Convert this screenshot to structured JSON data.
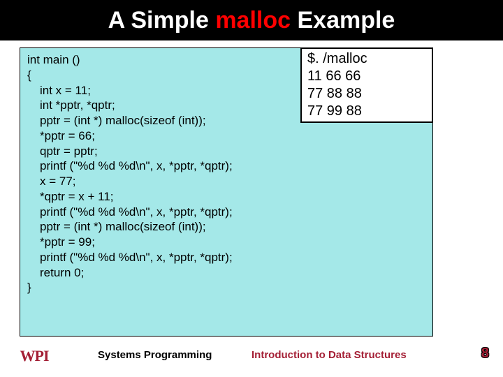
{
  "title": {
    "prefix": "A Simple ",
    "highlight": "malloc",
    "suffix": " Example"
  },
  "code": {
    "lines": [
      "int main ()",
      "{",
      "  int x = 11;",
      "  int *pptr, *qptr;",
      "",
      "  pptr = (int *) malloc(sizeof (int));",
      "  *pptr = 66;",
      "  qptr = pptr;",
      "  printf (\"%d %d %d\\n\", x, *pptr, *qptr);",
      "  x = 77;",
      "  *qptr = x + 11;",
      "  printf (\"%d %d %d\\n\", x, *pptr, *qptr);",
      "  pptr = (int *) malloc(sizeof (int));",
      "  *pptr = 99;",
      "  printf (\"%d %d %d\\n\", x, *pptr, *qptr);",
      "  return 0;",
      "}"
    ]
  },
  "output": {
    "lines": [
      "$. /malloc",
      "11 66 66",
      "77 88 88",
      "77 99 88"
    ]
  },
  "footer": {
    "logo": "WPI",
    "left": "Systems Programming",
    "center": "Introduction to Data Structures",
    "page": "8"
  },
  "colors": {
    "title_bg": "#000000",
    "title_text": "#ffffff",
    "highlight": "#ff0000",
    "code_bg": "#a4e8e8",
    "output_bg": "#ffffff",
    "wpi_red": "#a41f35"
  }
}
